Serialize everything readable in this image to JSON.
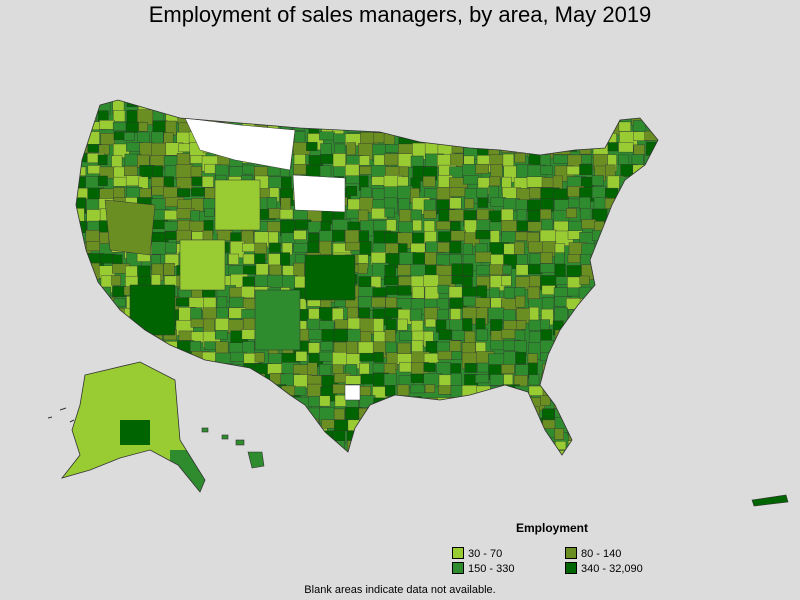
{
  "title": "Employment of sales managers, by area, May 2019",
  "legend": {
    "title": "Employment",
    "items": [
      {
        "label": "30 - 70",
        "color": "#99cc33"
      },
      {
        "label": "80 - 140",
        "color": "#6b8e23"
      },
      {
        "label": "150 - 330",
        "color": "#2e8b2e"
      },
      {
        "label": "340 - 32,090",
        "color": "#006400"
      }
    ]
  },
  "footnote": "Blank areas indicate data not available.",
  "colors": {
    "background": "#dcdcdc",
    "no_data": "#ffffff",
    "border": "#333333"
  }
}
